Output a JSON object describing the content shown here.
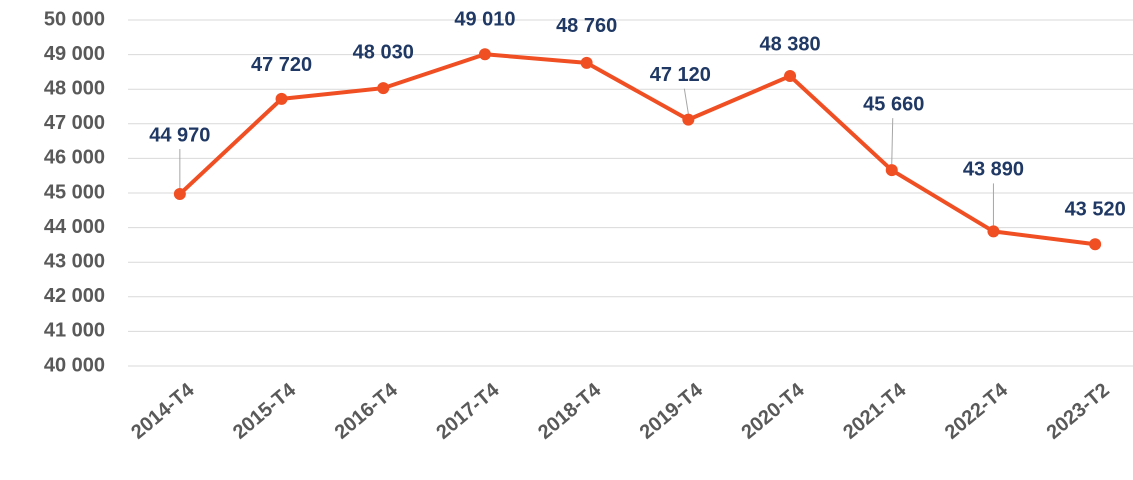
{
  "chart_data": {
    "type": "line",
    "categories": [
      "2014-T4",
      "2015-T4",
      "2016-T4",
      "2017-T4",
      "2018-T4",
      "2019-T4",
      "2020-T4",
      "2021-T4",
      "2022-T4",
      "2023-T2"
    ],
    "series": [
      {
        "name": null,
        "color": "#f04e23",
        "values": [
          44970,
          47720,
          48030,
          49010,
          48760,
          47120,
          48380,
          45660,
          43890,
          43520
        ],
        "value_labels": [
          "44 970",
          "47 720",
          "48 030",
          "49 010",
          "48 760",
          "47 120",
          "48 380",
          "45 660",
          "43 890",
          "43 520"
        ]
      }
    ],
    "ylim": [
      40000,
      50000
    ],
    "yticks": [
      {
        "value": 40000,
        "label": "40 000"
      },
      {
        "value": 41000,
        "label": "41 000"
      },
      {
        "value": 42000,
        "label": "42 000"
      },
      {
        "value": 43000,
        "label": "43 000"
      },
      {
        "value": 44000,
        "label": "44 000"
      },
      {
        "value": 45000,
        "label": "45 000"
      },
      {
        "value": 46000,
        "label": "46 000"
      },
      {
        "value": 47000,
        "label": "47 000"
      },
      {
        "value": 48000,
        "label": "48 000"
      },
      {
        "value": 49000,
        "label": "49 000"
      },
      {
        "value": 50000,
        "label": "50 000"
      }
    ],
    "grid": true
  }
}
